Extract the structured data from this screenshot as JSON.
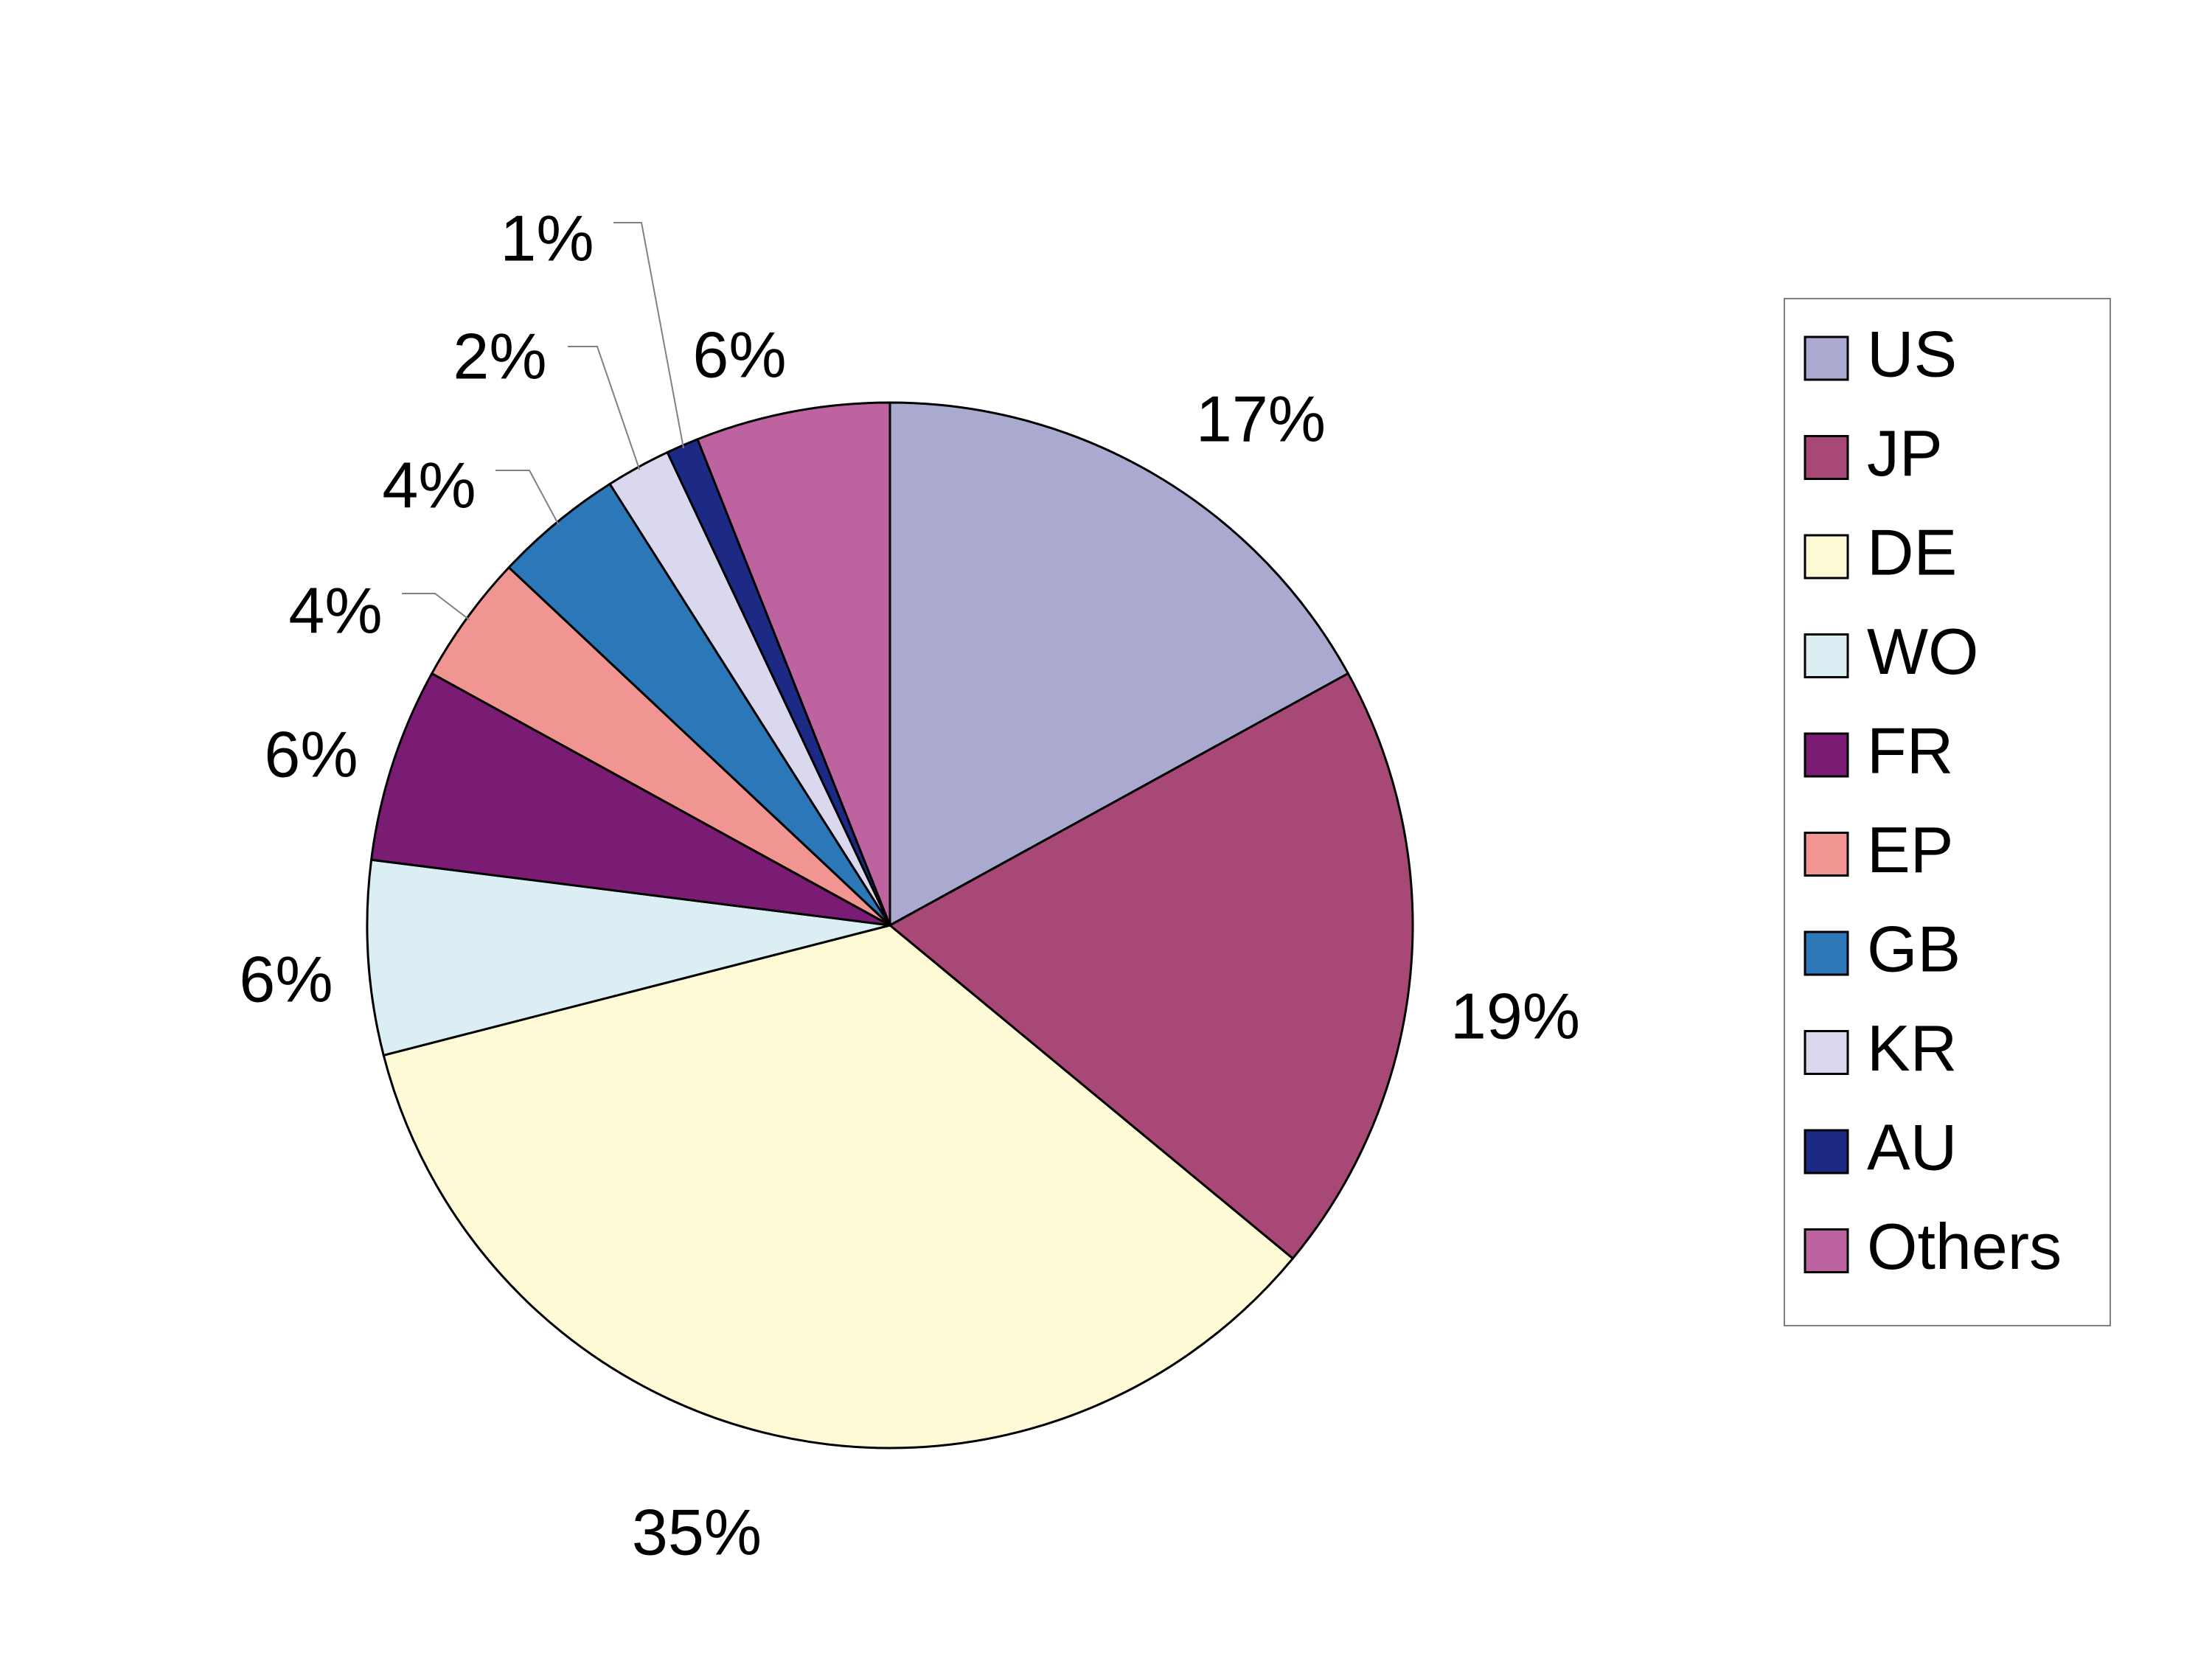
{
  "chart_data": {
    "type": "pie",
    "title": "",
    "legend_position": "right",
    "start_angle_deg": 0,
    "direction": "clockwise",
    "slices": [
      {
        "name": "US",
        "value": 17,
        "label": "17%",
        "color": "#aaa9d0"
      },
      {
        "name": "JP",
        "value": 19,
        "label": "19%",
        "color": "#a84876"
      },
      {
        "name": "DE",
        "value": 35,
        "label": "35%",
        "color": "#fffad6"
      },
      {
        "name": "WO",
        "value": 6,
        "label": "6%",
        "color": "#dbeef4"
      },
      {
        "name": "FR",
        "value": 6,
        "label": "6%",
        "color": "#7b1c74"
      },
      {
        "name": "EP",
        "value": 4,
        "label": "4%",
        "color": "#f19593"
      },
      {
        "name": "GB",
        "value": 4,
        "label": "4%",
        "color": "#2b77b7"
      },
      {
        "name": "KR",
        "value": 2,
        "label": "2%",
        "color": "#d9d8ee"
      },
      {
        "name": "AU",
        "value": 1,
        "label": "1%",
        "color": "#1c2a85"
      },
      {
        "name": "Others",
        "value": 6,
        "label": "6%",
        "color": "#bd63a0"
      }
    ]
  }
}
